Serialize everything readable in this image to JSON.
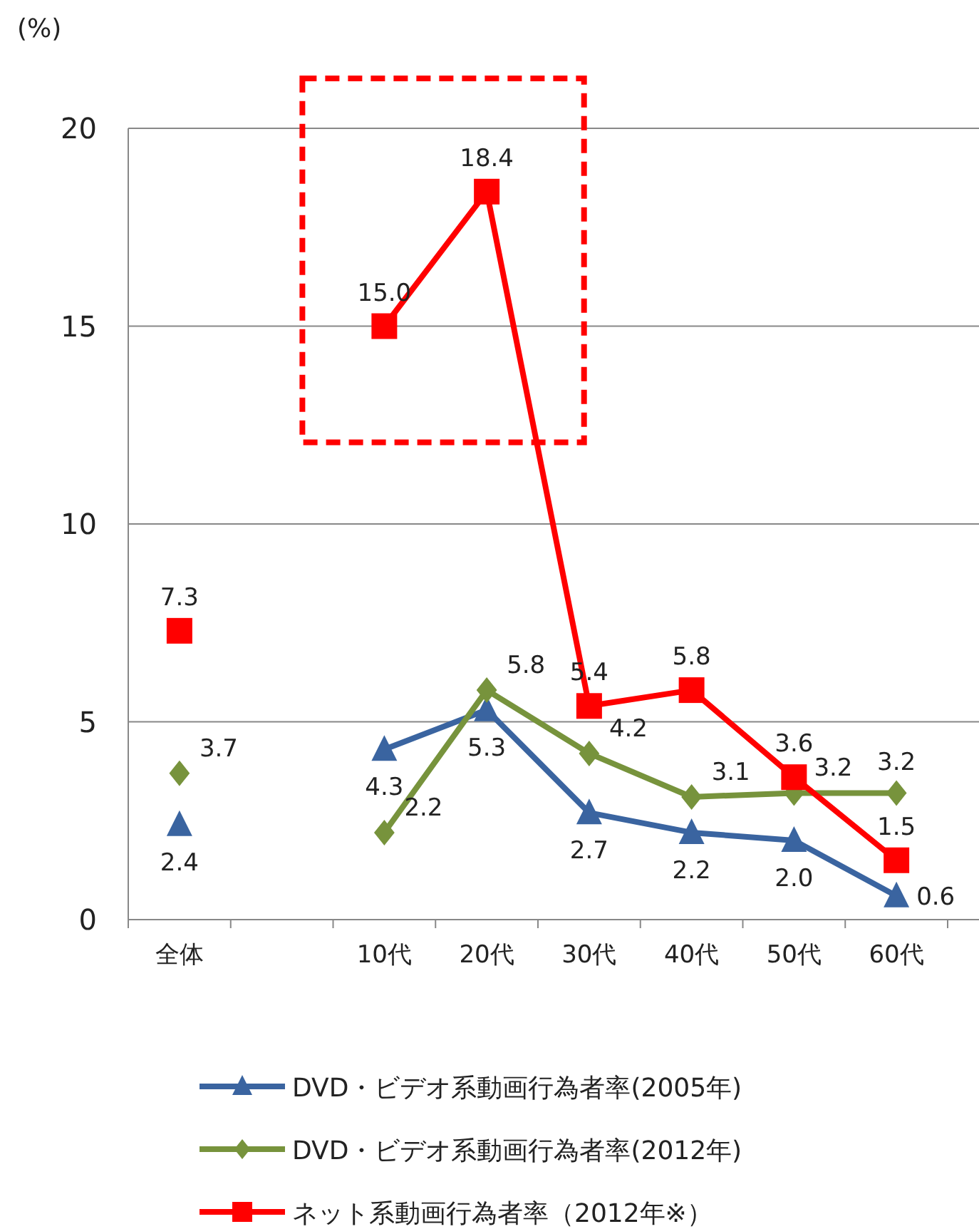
{
  "chart_data": {
    "type": "line",
    "ylabel": "(%)",
    "categories": [
      "全体",
      null,
      "10代",
      "20代",
      "30代",
      "40代",
      "50代",
      "60代"
    ],
    "ylim": [
      0,
      20
    ],
    "yticks": [
      0,
      5,
      10,
      15,
      20
    ],
    "grid": "y",
    "legend": "bottom",
    "series": [
      {
        "name": "DVD・ビデオ系動画行為者率(2005年)",
        "color": "#3a64a0",
        "marker": "triangle",
        "values": [
          2.4,
          null,
          4.3,
          5.3,
          2.7,
          2.2,
          2.0,
          0.6
        ],
        "value_labels": [
          "2.4",
          null,
          "4.3",
          "5.3",
          "2.7",
          "2.2",
          "2.0",
          "0.6"
        ]
      },
      {
        "name": "DVD・ビデオ系動画行為者率(2012年)",
        "color": "#77933c",
        "marker": "diamond",
        "values": [
          3.7,
          null,
          2.2,
          5.8,
          4.2,
          3.1,
          3.2,
          3.2
        ],
        "value_labels": [
          "3.7",
          null,
          "2.2",
          "5.8",
          "4.2",
          "3.1",
          "3.2",
          "3.2"
        ]
      },
      {
        "name": "ネット系動画行為者率（2012年※）",
        "color": "#ff0000",
        "marker": "square",
        "values": [
          7.3,
          null,
          15.0,
          18.4,
          5.4,
          5.8,
          3.6,
          1.5
        ],
        "value_labels": [
          "7.3",
          null,
          "15.0",
          "18.4",
          "5.4",
          "5.8",
          "3.6",
          "1.5"
        ]
      }
    ]
  }
}
